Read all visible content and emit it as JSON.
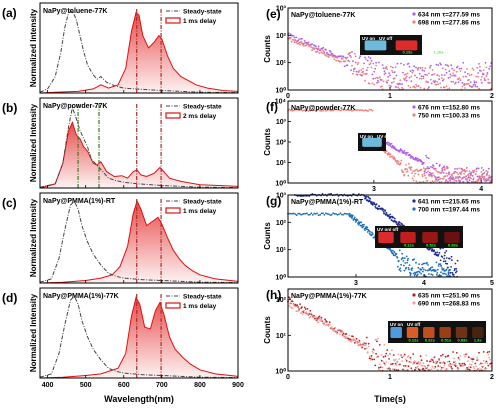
{
  "colors": {
    "steady": "#444444",
    "delay": "#e01010",
    "violet": "#b060e8",
    "pink": "#f08080",
    "navy": "#1f2f90",
    "blue": "#1e6fb8",
    "darkred": "#b02828",
    "lightpink": "#f5a0a0"
  },
  "left": {
    "xlabel": "Wavelength(nm)",
    "ylabel": "Normalized Intensity",
    "x_ticks": [
      "400",
      "500",
      "600",
      "700",
      "800",
      "900"
    ],
    "xlim": [
      380,
      900
    ],
    "panels": [
      {
        "label": "(a)",
        "title": "NaPy@toluene-77K",
        "legend": [
          "Steady-state",
          "1 ms delay"
        ],
        "steady": [
          [
            380,
            0.01
          ],
          [
            400,
            0.05
          ],
          [
            420,
            0.2
          ],
          [
            435,
            0.5
          ],
          [
            445,
            0.8
          ],
          [
            455,
            0.98
          ],
          [
            465,
            1.0
          ],
          [
            475,
            0.9
          ],
          [
            485,
            0.7
          ],
          [
            495,
            0.5
          ],
          [
            505,
            0.34
          ],
          [
            520,
            0.22
          ],
          [
            530,
            0.17
          ],
          [
            540,
            0.2
          ],
          [
            555,
            0.13
          ],
          [
            575,
            0.09
          ],
          [
            600,
            0.06
          ],
          [
            630,
            0.05
          ],
          [
            700,
            0.03
          ],
          [
            800,
            0.01
          ],
          [
            900,
            0.005
          ]
        ],
        "delay": [
          [
            380,
            0
          ],
          [
            420,
            0.01
          ],
          [
            480,
            0.02
          ],
          [
            520,
            0.05
          ],
          [
            540,
            0.1
          ],
          [
            560,
            0.06
          ],
          [
            585,
            0.1
          ],
          [
            605,
            0.3
          ],
          [
            620,
            0.75
          ],
          [
            632,
            0.98
          ],
          [
            640,
            0.95
          ],
          [
            650,
            0.7
          ],
          [
            665,
            0.55
          ],
          [
            680,
            0.62
          ],
          [
            692,
            0.7
          ],
          [
            700,
            0.66
          ],
          [
            715,
            0.45
          ],
          [
            730,
            0.3
          ],
          [
            750,
            0.2
          ],
          [
            770,
            0.15
          ],
          [
            790,
            0.1
          ],
          [
            820,
            0.06
          ],
          [
            860,
            0.03
          ],
          [
            900,
            0.02
          ]
        ],
        "vlines": [
          634,
          698
        ]
      },
      {
        "label": "(b)",
        "title": "NaPy@powder-77K",
        "legend": [
          "Steady-state",
          "2 ms delay"
        ],
        "steady": [
          [
            380,
            0.01
          ],
          [
            420,
            0.05
          ],
          [
            440,
            0.3
          ],
          [
            455,
            0.75
          ],
          [
            465,
            0.98
          ],
          [
            475,
            0.85
          ],
          [
            485,
            0.7
          ],
          [
            495,
            0.6
          ],
          [
            505,
            0.5
          ],
          [
            515,
            0.35
          ],
          [
            525,
            0.3
          ],
          [
            535,
            0.25
          ],
          [
            545,
            0.2
          ],
          [
            560,
            0.12
          ],
          [
            580,
            0.09
          ],
          [
            600,
            0.07
          ],
          [
            640,
            0.05
          ],
          [
            700,
            0.03
          ],
          [
            800,
            0.01
          ],
          [
            900,
            0.005
          ]
        ],
        "delay": [
          [
            380,
            0
          ],
          [
            420,
            0.05
          ],
          [
            440,
            0.3
          ],
          [
            455,
            0.7
          ],
          [
            465,
            0.8
          ],
          [
            475,
            0.65
          ],
          [
            485,
            0.6
          ],
          [
            495,
            0.5
          ],
          [
            505,
            0.45
          ],
          [
            520,
            0.3
          ],
          [
            530,
            0.28
          ],
          [
            540,
            0.32
          ],
          [
            555,
            0.2
          ],
          [
            575,
            0.14
          ],
          [
            595,
            0.15
          ],
          [
            610,
            0.12
          ],
          [
            625,
            0.2
          ],
          [
            635,
            0.22
          ],
          [
            645,
            0.16
          ],
          [
            660,
            0.14
          ],
          [
            680,
            0.18
          ],
          [
            695,
            0.25
          ],
          [
            705,
            0.2
          ],
          [
            720,
            0.12
          ],
          [
            750,
            0.08
          ],
          [
            800,
            0.04
          ],
          [
            850,
            0.03
          ],
          [
            900,
            0.02
          ]
        ],
        "vlines": [
          480,
          535,
          634,
          698
        ]
      },
      {
        "label": "(c)",
        "title": "NaPy@PMMA(1%)-RT",
        "legend": [
          "Steady-state",
          "1 ms delay"
        ],
        "steady": [
          [
            380,
            0.01
          ],
          [
            410,
            0.05
          ],
          [
            430,
            0.3
          ],
          [
            445,
            0.65
          ],
          [
            460,
            0.95
          ],
          [
            470,
            1.0
          ],
          [
            480,
            0.9
          ],
          [
            490,
            0.7
          ],
          [
            505,
            0.5
          ],
          [
            520,
            0.35
          ],
          [
            540,
            0.22
          ],
          [
            560,
            0.12
          ],
          [
            580,
            0.08
          ],
          [
            600,
            0.06
          ],
          [
            650,
            0.04
          ],
          [
            700,
            0.03
          ],
          [
            800,
            0.01
          ],
          [
            900,
            0.005
          ]
        ],
        "delay": [
          [
            380,
            0
          ],
          [
            440,
            0.01
          ],
          [
            500,
            0.03
          ],
          [
            540,
            0.06
          ],
          [
            570,
            0.1
          ],
          [
            590,
            0.2
          ],
          [
            610,
            0.45
          ],
          [
            625,
            0.85
          ],
          [
            635,
            1.0
          ],
          [
            645,
            0.9
          ],
          [
            660,
            0.7
          ],
          [
            675,
            0.75
          ],
          [
            690,
            0.8
          ],
          [
            700,
            0.72
          ],
          [
            715,
            0.55
          ],
          [
            730,
            0.4
          ],
          [
            745,
            0.3
          ],
          [
            760,
            0.22
          ],
          [
            780,
            0.15
          ],
          [
            800,
            0.1
          ],
          [
            840,
            0.05
          ],
          [
            880,
            0.03
          ],
          [
            900,
            0.02
          ]
        ],
        "vlines": [
          634,
          698
        ]
      },
      {
        "label": "(d)",
        "title": "NaPy@PMMA(1%)-77K",
        "legend": [
          "Steady-state",
          "1 ms delay"
        ],
        "steady": [
          [
            380,
            0.01
          ],
          [
            410,
            0.05
          ],
          [
            430,
            0.3
          ],
          [
            445,
            0.65
          ],
          [
            460,
            0.95
          ],
          [
            470,
            1.0
          ],
          [
            480,
            0.9
          ],
          [
            490,
            0.7
          ],
          [
            505,
            0.5
          ],
          [
            520,
            0.35
          ],
          [
            540,
            0.22
          ],
          [
            560,
            0.12
          ],
          [
            580,
            0.08
          ],
          [
            600,
            0.06
          ],
          [
            650,
            0.04
          ],
          [
            700,
            0.03
          ],
          [
            800,
            0.01
          ],
          [
            900,
            0.005
          ]
        ],
        "delay": [
          [
            380,
            0
          ],
          [
            440,
            0.01
          ],
          [
            500,
            0.03
          ],
          [
            540,
            0.05
          ],
          [
            560,
            0.08
          ],
          [
            585,
            0.12
          ],
          [
            605,
            0.3
          ],
          [
            620,
            0.75
          ],
          [
            632,
            0.98
          ],
          [
            642,
            0.9
          ],
          [
            655,
            0.62
          ],
          [
            670,
            0.6
          ],
          [
            683,
            0.82
          ],
          [
            695,
            0.92
          ],
          [
            705,
            0.78
          ],
          [
            720,
            0.5
          ],
          [
            735,
            0.35
          ],
          [
            755,
            0.25
          ],
          [
            775,
            0.17
          ],
          [
            800,
            0.1
          ],
          [
            840,
            0.05
          ],
          [
            880,
            0.03
          ],
          [
            900,
            0.02
          ]
        ],
        "vlines": [
          634,
          698
        ]
      }
    ]
  },
  "right": {
    "xlabel": "Time(s)",
    "ylabel": "Counts",
    "inset_labels": {
      "uv_on": "UV on",
      "uv_off": "UV off",
      "uv_onoff": "UV on/ off"
    },
    "panels": [
      {
        "label": "(e)",
        "title": "NaPy@toluene-77K",
        "x_ticks": [
          "0",
          "1",
          "2"
        ],
        "xlim": [
          0,
          2
        ],
        "y_ticks": [
          "10⁰",
          "10¹",
          "10²",
          "10³"
        ],
        "ylim": [
          0,
          3
        ],
        "legend": [
          {
            "text": "634 nm τ=277.59 ms",
            "color": "#b060e8"
          },
          {
            "text": "698 nm τ=277.86 ms",
            "color": "#f08080"
          }
        ],
        "decays": [
          {
            "color": "#b060e8",
            "t0": 0,
            "tau": 0.28,
            "start": 2.0,
            "floor": 0.55,
            "end": 2
          },
          {
            "color": "#f08080",
            "t0": 0,
            "tau": 0.28,
            "start": 1.9,
            "floor": 0.45,
            "end": 2
          }
        ],
        "inset_times": [
          "0.13s",
          "1.10s"
        ]
      },
      {
        "label": "(f)",
        "title": "NaPy@powder-77K",
        "x_ticks": [
          "3",
          "4"
        ],
        "xlim": [
          2.2,
          4.1
        ],
        "y_ticks": [
          "10⁰",
          "10¹",
          "10²",
          "10³",
          "10⁴"
        ],
        "ylim": [
          0,
          4
        ],
        "legend": [
          {
            "text": "676 nm τ=152.80 ms",
            "color": "#b060e8"
          },
          {
            "text": "750 nm τ=100.33 ms",
            "color": "#f08080"
          }
        ],
        "decays": [
          {
            "color": "#f08080",
            "flat": [
              2.2,
              3.0,
              3.55
            ]
          },
          {
            "color": "#b060e8",
            "t0": 3.0,
            "tau": 0.15,
            "start": 2.3,
            "floor": 0.35,
            "end": 4.1
          },
          {
            "color": "#f08080",
            "t0": 3.0,
            "tau": 0.1,
            "start": 2.0,
            "floor": 0.3,
            "end": 4.1
          }
        ],
        "inset_times": []
      },
      {
        "label": "(g)",
        "title": "NaPy@PMMA(1%)-RT",
        "x_ticks": [
          "3",
          "4",
          "5"
        ],
        "xlim": [
          2,
          5
        ],
        "y_ticks": [
          "10⁰",
          "10¹",
          "10²",
          "10³"
        ],
        "ylim": [
          0,
          3
        ],
        "legend": [
          {
            "text": "641 nm τ=215.65 ms",
            "color": "#1f2f90"
          },
          {
            "text": "700 nm τ=197.44 ms",
            "color": "#1e6fb8"
          }
        ],
        "decays": [
          {
            "color": "#1f2f90",
            "flat": [
              2.1,
              3.1,
              3.0
            ]
          },
          {
            "color": "#1f2f90",
            "t0": 3.1,
            "tau": 0.22,
            "start": 3.0,
            "floor": 0.2,
            "end": 4.5
          },
          {
            "color": "#1e6fb8",
            "flat": [
              2.0,
              2.9,
              2.3
            ]
          },
          {
            "color": "#1e6fb8",
            "t0": 2.9,
            "tau": 0.2,
            "start": 2.3,
            "floor": 0.15,
            "end": 4.4
          }
        ],
        "inset_times": [
          "0.12s",
          "0.52s",
          "0.83s"
        ]
      },
      {
        "label": "(h)",
        "title": "NaPy@PMMA(1%)-77K",
        "x_ticks": [
          "0",
          "1",
          "2"
        ],
        "xlim": [
          0,
          2
        ],
        "y_ticks": [
          "10⁰",
          "10¹",
          "10²"
        ],
        "ylim": [
          0,
          2.3
        ],
        "legend": [
          {
            "text": "635 nm τ=251.90 ms",
            "color": "#b02828"
          },
          {
            "text": "690 nm τ=268.83 ms",
            "color": "#f5a0a0"
          }
        ],
        "decays": [
          {
            "color": "#b02828",
            "t0": 0,
            "tau": 0.25,
            "start": 2.0,
            "floor": 0.1,
            "end": 2
          },
          {
            "color": "#f5a0a0",
            "t0": 0,
            "tau": 0.27,
            "start": 1.9,
            "floor": 0.05,
            "end": 2
          }
        ],
        "inset_times": [
          "0.12s",
          "0.32s",
          "0.51s",
          "0.83s",
          "1.3s"
        ]
      }
    ]
  }
}
